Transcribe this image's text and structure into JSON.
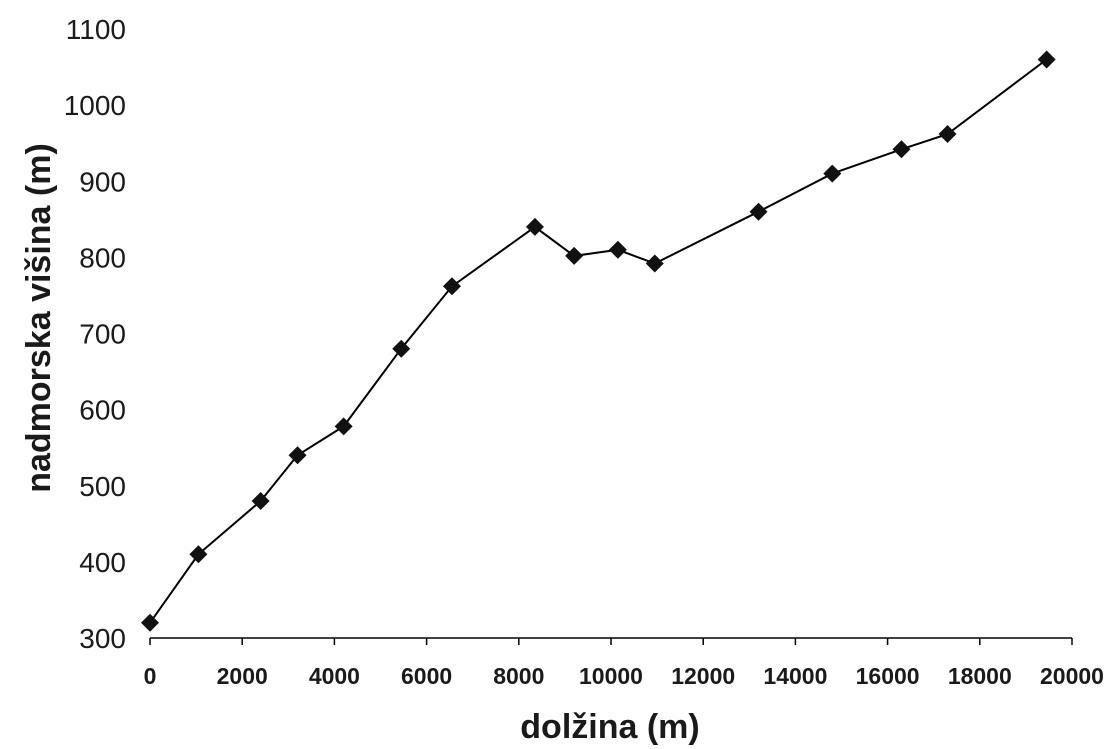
{
  "chart_data": {
    "type": "line",
    "title": "",
    "xlabel": "dolžina (m)",
    "ylabel": "nadmorska višina (m)",
    "xlim": [
      0,
      20000
    ],
    "ylim": [
      300,
      1100
    ],
    "x_ticks": [
      "0",
      "2000",
      "4000",
      "6000",
      "8000",
      "10000",
      "12000",
      "14000",
      "16000",
      "18000",
      "20000"
    ],
    "y_ticks": [
      "300",
      "400",
      "500",
      "600",
      "700",
      "800",
      "900",
      "1000",
      "1100"
    ],
    "grid": false,
    "legend": "none",
    "marker": "diamond",
    "line_color": "#000000",
    "marker_color": "#111111",
    "series": [
      {
        "x": [
          0,
          1050,
          2400,
          3200,
          4200,
          5450,
          6550,
          8350,
          9200,
          10150,
          10950,
          13200,
          14800,
          16300,
          17300,
          19450
        ],
        "y": [
          320,
          410,
          480,
          540,
          578,
          680,
          762,
          840,
          802,
          810,
          792,
          860,
          910,
          942,
          962,
          1060
        ]
      }
    ]
  }
}
